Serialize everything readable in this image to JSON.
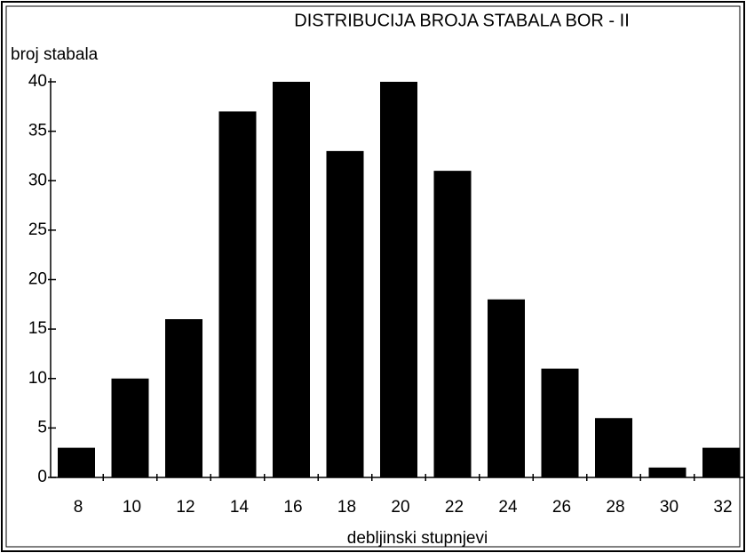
{
  "chart_data": {
    "type": "bar",
    "title": "DISTRIBUCIJA BROJA STABALA BOR - II",
    "y_label": "broj stabala",
    "x_label": "debljinski stupnjevi",
    "categories": [
      "8",
      "10",
      "12",
      "14",
      "16",
      "18",
      "20",
      "22",
      "24",
      "26",
      "28",
      "30",
      "32"
    ],
    "values": [
      3,
      10,
      16,
      37,
      40,
      33,
      40,
      31,
      18,
      11,
      6,
      1,
      3
    ],
    "color": "#000000",
    "ylim": [
      0,
      40
    ],
    "yticks": [
      0,
      5,
      10,
      15,
      20,
      25,
      30,
      35,
      40
    ],
    "grid": false
  }
}
